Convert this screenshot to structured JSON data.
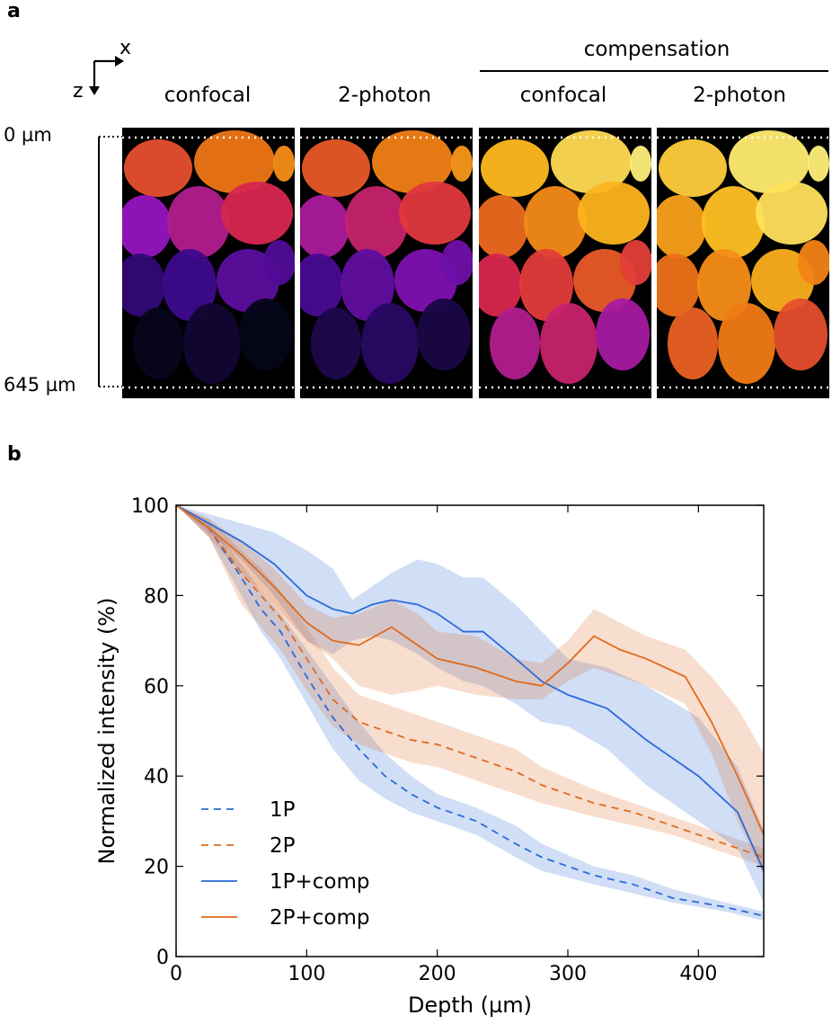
{
  "panel_a": {
    "letter": "a",
    "axes": {
      "x": "x",
      "z": "z"
    },
    "group_label": "compensation",
    "columns": [
      "confocal",
      "2-photon",
      "confocal",
      "2-photon"
    ],
    "depth_top": "0 µm",
    "depth_bottom": "645 µm",
    "brightness": [
      0.0,
      0.15,
      0.55,
      0.85
    ]
  },
  "panel_b": {
    "letter": "b"
  },
  "chart_data": {
    "type": "line",
    "xlabel": "Depth (µm)",
    "ylabel": "Normalized intensity (%)",
    "xlim": [
      0,
      450
    ],
    "ylim": [
      0,
      100
    ],
    "xticks": [
      0,
      100,
      200,
      300,
      400
    ],
    "yticks": [
      0,
      20,
      40,
      60,
      80,
      100
    ],
    "legend_position": "lower-left",
    "colors": {
      "blue": "#2b6ad8",
      "orange": "#e06a1e"
    },
    "series": [
      {
        "name": "1P",
        "style": "dashed",
        "color": "#2b6ad8",
        "x": [
          0,
          25,
          50,
          65,
          80,
          100,
          120,
          140,
          160,
          180,
          200,
          230,
          260,
          280,
          320,
          350,
          380,
          420,
          450
        ],
        "y": [
          100,
          95,
          84,
          77,
          72,
          62,
          53,
          46,
          40,
          36,
          33,
          30,
          25,
          22,
          18,
          16,
          13,
          11,
          9
        ],
        "band_upper": [
          100,
          96,
          87,
          81,
          76,
          68,
          60,
          52,
          45,
          40,
          36,
          33,
          29,
          25,
          20,
          18,
          15,
          12,
          10
        ],
        "band_lower": [
          100,
          93,
          80,
          72,
          66,
          56,
          46,
          39,
          35,
          32,
          30,
          27,
          22,
          19,
          16,
          14,
          12,
          10,
          8
        ]
      },
      {
        "name": "2P",
        "style": "dashed",
        "color": "#e06a1e",
        "x": [
          0,
          25,
          50,
          65,
          80,
          100,
          120,
          140,
          160,
          180,
          200,
          230,
          260,
          280,
          320,
          350,
          380,
          420,
          450
        ],
        "y": [
          100,
          95,
          85,
          80,
          75,
          66,
          57,
          52,
          50,
          48,
          47,
          44,
          41,
          38,
          34,
          32,
          29,
          25,
          22
        ],
        "band_upper": [
          100,
          97,
          90,
          86,
          81,
          73,
          64,
          58,
          56,
          54,
          52,
          49,
          46,
          42,
          37,
          34,
          31,
          27,
          24
        ],
        "band_lower": [
          100,
          93,
          78,
          73,
          68,
          59,
          51,
          47,
          45,
          43,
          42,
          39,
          36,
          34,
          31,
          29,
          27,
          23,
          20
        ]
      },
      {
        "name": "1P+comp",
        "style": "solid",
        "color": "#2b6ad8",
        "x": [
          0,
          25,
          50,
          75,
          100,
          120,
          135,
          150,
          165,
          185,
          200,
          220,
          235,
          260,
          280,
          300,
          330,
          360,
          400,
          430,
          450
        ],
        "y": [
          100,
          96,
          92,
          87,
          80,
          77,
          76,
          78,
          79,
          78,
          76,
          72,
          72,
          66,
          61,
          58,
          55,
          48,
          40,
          32,
          19
        ],
        "band_upper": [
          100,
          98,
          96,
          94,
          90,
          86,
          79,
          82,
          85,
          88,
          87,
          84,
          84,
          78,
          72,
          66,
          64,
          60,
          53,
          42,
          28
        ],
        "band_lower": [
          100,
          94,
          88,
          80,
          70,
          67,
          70,
          71,
          70,
          67,
          64,
          61,
          60,
          56,
          52,
          51,
          46,
          38,
          30,
          24,
          12
        ]
      },
      {
        "name": "2P+comp",
        "style": "solid",
        "color": "#e06a1e",
        "x": [
          0,
          25,
          50,
          75,
          100,
          120,
          140,
          165,
          185,
          200,
          230,
          260,
          280,
          300,
          320,
          340,
          360,
          390,
          410,
          430,
          450
        ],
        "y": [
          100,
          95,
          89,
          82,
          74,
          70,
          69,
          73,
          69,
          66,
          64,
          61,
          60,
          65,
          71,
          68,
          66,
          62,
          52,
          40,
          27
        ],
        "band_upper": [
          100,
          97,
          92,
          86,
          78,
          75,
          76,
          79,
          76,
          72,
          71,
          66,
          65,
          70,
          77,
          74,
          71,
          68,
          62,
          55,
          45
        ],
        "band_lower": [
          100,
          93,
          85,
          78,
          70,
          66,
          60,
          58,
          59,
          60,
          58,
          57,
          57,
          61,
          64,
          62,
          60,
          56,
          45,
          30,
          18
        ]
      }
    ]
  }
}
